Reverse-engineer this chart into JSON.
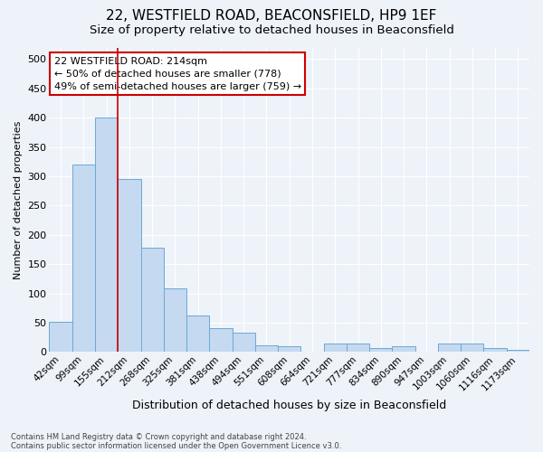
{
  "title1": "22, WESTFIELD ROAD, BEACONSFIELD, HP9 1EF",
  "title2": "Size of property relative to detached houses in Beaconsfield",
  "xlabel": "Distribution of detached houses by size in Beaconsfield",
  "ylabel": "Number of detached properties",
  "categories": [
    "42sqm",
    "99sqm",
    "155sqm",
    "212sqm",
    "268sqm",
    "325sqm",
    "381sqm",
    "438sqm",
    "494sqm",
    "551sqm",
    "608sqm",
    "664sqm",
    "721sqm",
    "777sqm",
    "834sqm",
    "890sqm",
    "947sqm",
    "1003sqm",
    "1060sqm",
    "1116sqm",
    "1173sqm"
  ],
  "values": [
    52,
    320,
    400,
    295,
    178,
    108,
    63,
    40,
    33,
    11,
    10,
    0,
    14,
    15,
    7,
    10,
    0,
    15,
    15,
    7,
    3
  ],
  "bar_color": "#c5d9f0",
  "bar_edgecolor": "#6aaad4",
  "vline_color": "#cc0000",
  "vline_x_index": 2.5,
  "annotation_text": "22 WESTFIELD ROAD: 214sqm\n← 50% of detached houses are smaller (778)\n49% of semi-detached houses are larger (759) →",
  "annotation_box_facecolor": "#ffffff",
  "annotation_box_edgecolor": "#cc0000",
  "ylim": [
    0,
    520
  ],
  "yticks": [
    0,
    50,
    100,
    150,
    200,
    250,
    300,
    350,
    400,
    450,
    500
  ],
  "footnote1": "Contains HM Land Registry data © Crown copyright and database right 2024.",
  "footnote2": "Contains public sector information licensed under the Open Government Licence v3.0.",
  "background_color": "#eef2f9",
  "grid_color": "#ffffff",
  "title1_fontsize": 11,
  "title2_fontsize": 9.5,
  "annotation_fontsize": 8,
  "ylabel_fontsize": 8,
  "xlabel_fontsize": 9,
  "tick_fontsize": 7.5,
  "ytick_fontsize": 8,
  "footnote_fontsize": 6
}
